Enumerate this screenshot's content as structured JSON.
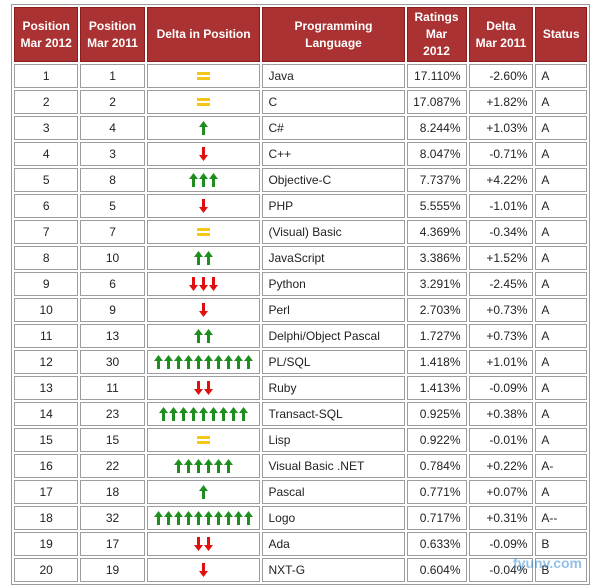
{
  "headers": {
    "pos2012": "Position\nMar 2012",
    "pos2011": "Position\nMar 2011",
    "delta": "Delta in Position",
    "language": "Programming Language",
    "ratings": "Ratings\nMar 2012",
    "delta_ratings": "Delta\nMar 2011",
    "status": "Status"
  },
  "colors": {
    "header_bg": "#ab3232",
    "arrow_up": "#1e8f1e",
    "arrow_down": "#e01010",
    "equal": "#f5c518",
    "lang_link": "#1a1aa6"
  },
  "rows": [
    {
      "pos2012": "1",
      "pos2011": "1",
      "delta_type": "equal",
      "delta_count": 1,
      "language": "Java",
      "ratings": "17.110%",
      "delta": "-2.60%",
      "status": "A"
    },
    {
      "pos2012": "2",
      "pos2011": "2",
      "delta_type": "equal",
      "delta_count": 1,
      "language": "C",
      "ratings": "17.087%",
      "delta": "+1.82%",
      "status": "A"
    },
    {
      "pos2012": "3",
      "pos2011": "4",
      "delta_type": "up",
      "delta_count": 1,
      "language": "C#",
      "ratings": "8.244%",
      "delta": "+1.03%",
      "status": "A"
    },
    {
      "pos2012": "4",
      "pos2011": "3",
      "delta_type": "down",
      "delta_count": 1,
      "language": "C++",
      "ratings": "8.047%",
      "delta": "-0.71%",
      "status": "A"
    },
    {
      "pos2012": "5",
      "pos2011": "8",
      "delta_type": "up",
      "delta_count": 3,
      "language": "Objective-C",
      "ratings": "7.737%",
      "delta": "+4.22%",
      "status": "A"
    },
    {
      "pos2012": "6",
      "pos2011": "5",
      "delta_type": "down",
      "delta_count": 1,
      "language": "PHP",
      "ratings": "5.555%",
      "delta": "-1.01%",
      "status": "A"
    },
    {
      "pos2012": "7",
      "pos2011": "7",
      "delta_type": "equal",
      "delta_count": 1,
      "language": "(Visual) Basic",
      "ratings": "4.369%",
      "delta": "-0.34%",
      "status": "A"
    },
    {
      "pos2012": "8",
      "pos2011": "10",
      "delta_type": "up",
      "delta_count": 2,
      "language": "JavaScript",
      "ratings": "3.386%",
      "delta": "+1.52%",
      "status": "A"
    },
    {
      "pos2012": "9",
      "pos2011": "6",
      "delta_type": "down",
      "delta_count": 3,
      "language": "Python",
      "ratings": "3.291%",
      "delta": "-2.45%",
      "status": "A"
    },
    {
      "pos2012": "10",
      "pos2011": "9",
      "delta_type": "down",
      "delta_count": 1,
      "language": "Perl",
      "ratings": "2.703%",
      "delta": "+0.73%",
      "status": "A"
    },
    {
      "pos2012": "11",
      "pos2011": "13",
      "delta_type": "up",
      "delta_count": 2,
      "language": "Delphi/Object Pascal",
      "ratings": "1.727%",
      "delta": "+0.73%",
      "status": "A"
    },
    {
      "pos2012": "12",
      "pos2011": "30",
      "delta_type": "up",
      "delta_count": 10,
      "language": "PL/SQL",
      "ratings": "1.418%",
      "delta": "+1.01%",
      "status": "A"
    },
    {
      "pos2012": "13",
      "pos2011": "11",
      "delta_type": "down",
      "delta_count": 2,
      "language": "Ruby",
      "ratings": "1.413%",
      "delta": "-0.09%",
      "status": "A"
    },
    {
      "pos2012": "14",
      "pos2011": "23",
      "delta_type": "up",
      "delta_count": 9,
      "language": "Transact-SQL",
      "ratings": "0.925%",
      "delta": "+0.38%",
      "status": "A"
    },
    {
      "pos2012": "15",
      "pos2011": "15",
      "delta_type": "equal",
      "delta_count": 1,
      "language": "Lisp",
      "ratings": "0.922%",
      "delta": "-0.01%",
      "status": "A"
    },
    {
      "pos2012": "16",
      "pos2011": "22",
      "delta_type": "up",
      "delta_count": 6,
      "language": "Visual Basic .NET",
      "ratings": "0.784%",
      "delta": "+0.22%",
      "status": "A-"
    },
    {
      "pos2012": "17",
      "pos2011": "18",
      "delta_type": "up",
      "delta_count": 1,
      "language": "Pascal",
      "ratings": "0.771%",
      "delta": "+0.07%",
      "status": "A"
    },
    {
      "pos2012": "18",
      "pos2011": "32",
      "delta_type": "up",
      "delta_count": 10,
      "language": "Logo",
      "ratings": "0.717%",
      "delta": "+0.31%",
      "status": "A--"
    },
    {
      "pos2012": "19",
      "pos2011": "17",
      "delta_type": "down",
      "delta_count": 2,
      "language": "Ada",
      "ratings": "0.633%",
      "delta": "-0.09%",
      "status": "B"
    },
    {
      "pos2012": "20",
      "pos2011": "19",
      "delta_type": "down",
      "delta_count": 1,
      "language": "NXT-G",
      "ratings": "0.604%",
      "delta": "-0.04%",
      "status": "B"
    }
  ],
  "watermark": "fyunv.com"
}
